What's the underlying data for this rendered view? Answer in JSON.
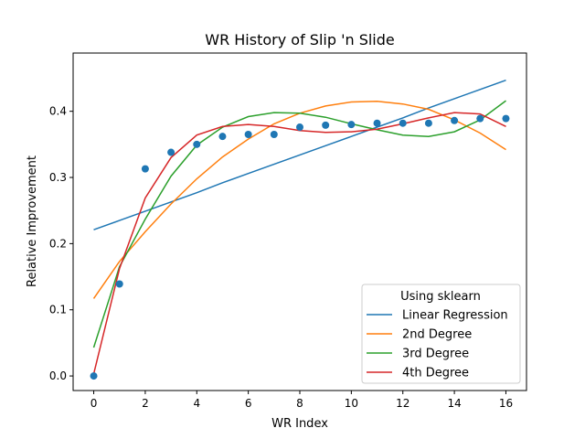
{
  "chart_data": {
    "type": "line",
    "title": "WR History of Slip 'n Slide",
    "xlabel": "WR Index",
    "ylabel": "Relative Improvement",
    "xlim": [
      -0.8,
      16.8
    ],
    "ylim": [
      -0.022,
      0.488
    ],
    "x_ticks": [
      "0",
      "2",
      "4",
      "6",
      "8",
      "10",
      "12",
      "14",
      "16"
    ],
    "y_ticks": [
      "0.0",
      "0.1",
      "0.2",
      "0.3",
      "0.4"
    ],
    "grid": false,
    "legend": {
      "title": "Using sklearn",
      "placement": "lower-right"
    },
    "x": [
      0,
      1,
      2,
      3,
      4,
      5,
      6,
      7,
      8,
      9,
      10,
      11,
      12,
      13,
      14,
      15,
      16
    ],
    "scatter": {
      "color": "#1f77b4",
      "values": [
        0.0,
        0.139,
        0.313,
        0.338,
        0.35,
        0.362,
        0.365,
        0.365,
        0.376,
        0.379,
        0.38,
        0.382,
        0.382,
        0.382,
        0.386,
        0.389,
        0.389
      ]
    },
    "series": [
      {
        "name": "Linear Regression",
        "color": "#1f77b4",
        "values": [
          0.221,
          0.235,
          0.249,
          0.263,
          0.277,
          0.292,
          0.306,
          0.32,
          0.334,
          0.348,
          0.362,
          0.376,
          0.39,
          0.405,
          0.419,
          0.433,
          0.447
        ]
      },
      {
        "name": "2nd Degree",
        "color": "#ff7f0e",
        "values": [
          0.117,
          0.173,
          0.218,
          0.26,
          0.298,
          0.331,
          0.358,
          0.381,
          0.397,
          0.408,
          0.414,
          0.415,
          0.411,
          0.403,
          0.387,
          0.367,
          0.342
        ]
      },
      {
        "name": "3rd Degree",
        "color": "#2ca02c",
        "values": [
          0.043,
          0.165,
          0.237,
          0.302,
          0.349,
          0.376,
          0.392,
          0.398,
          0.397,
          0.391,
          0.381,
          0.372,
          0.364,
          0.362,
          0.369,
          0.387,
          0.416
        ]
      },
      {
        "name": "4th Degree",
        "color": "#d62728",
        "values": [
          0.003,
          0.162,
          0.269,
          0.33,
          0.364,
          0.377,
          0.38,
          0.377,
          0.371,
          0.368,
          0.369,
          0.373,
          0.381,
          0.39,
          0.398,
          0.396,
          0.377
        ]
      }
    ]
  }
}
